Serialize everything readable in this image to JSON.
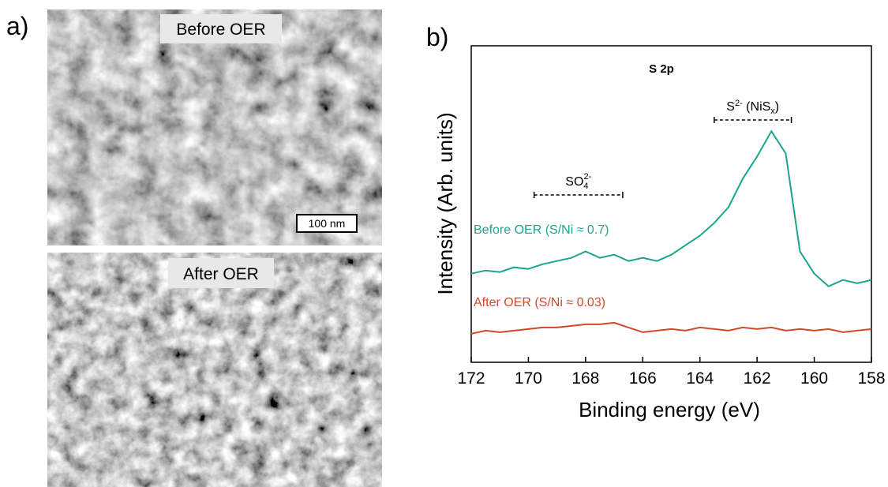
{
  "panels": {
    "a_label": "a)",
    "b_label": "b)"
  },
  "images": [
    {
      "label": "Before OER",
      "scale_bar": "100 nm"
    },
    {
      "label": "After OER"
    }
  ],
  "chart_data": {
    "type": "line",
    "title": "S 2p",
    "x_label": "Binding energy (eV)",
    "y_label": "Intensity (Arb. units)",
    "x": [
      172,
      171.5,
      171,
      170.5,
      170,
      169.5,
      169,
      168.5,
      168,
      167.5,
      167,
      166.5,
      166,
      165.5,
      165,
      164.5,
      164,
      163.5,
      163,
      162.5,
      162,
      161.5,
      161,
      160.5,
      160,
      159.5,
      159,
      158.5,
      158
    ],
    "series": [
      {
        "name": "Before OER (S/Ni ≈ 0.7)",
        "color": "#1ba58f",
        "values": [
          28,
          29,
          28.5,
          30,
          29.5,
          31,
          32,
          33,
          35,
          33,
          34,
          32,
          33,
          32,
          34,
          37,
          40,
          44,
          49,
          58,
          65,
          73,
          66,
          35,
          28,
          24,
          26,
          25,
          26
        ]
      },
      {
        "name": "After OER (S/Ni ≈ 0.03)",
        "color": "#d04a2a",
        "values": [
          9,
          10,
          9.5,
          10,
          10.5,
          11,
          11,
          11.5,
          12,
          12,
          12.5,
          11,
          9.5,
          10,
          10.5,
          10,
          11,
          10.5,
          10,
          11,
          10.5,
          11,
          10,
          10.5,
          10,
          10.5,
          9.5,
          10,
          10.5
        ]
      }
    ],
    "xlim": [
      172,
      158
    ],
    "xticks": [
      172,
      170,
      168,
      166,
      164,
      162,
      160,
      158
    ],
    "ylim": [
      0,
      100
    ],
    "annotations": [
      {
        "parts": [
          "S",
          "2-",
          " (NiS",
          "x",
          ")"
        ],
        "range": [
          163.5,
          160.8
        ]
      },
      {
        "parts": [
          "SO",
          "4",
          "2-"
        ],
        "range": [
          169.8,
          166.7
        ]
      }
    ]
  }
}
